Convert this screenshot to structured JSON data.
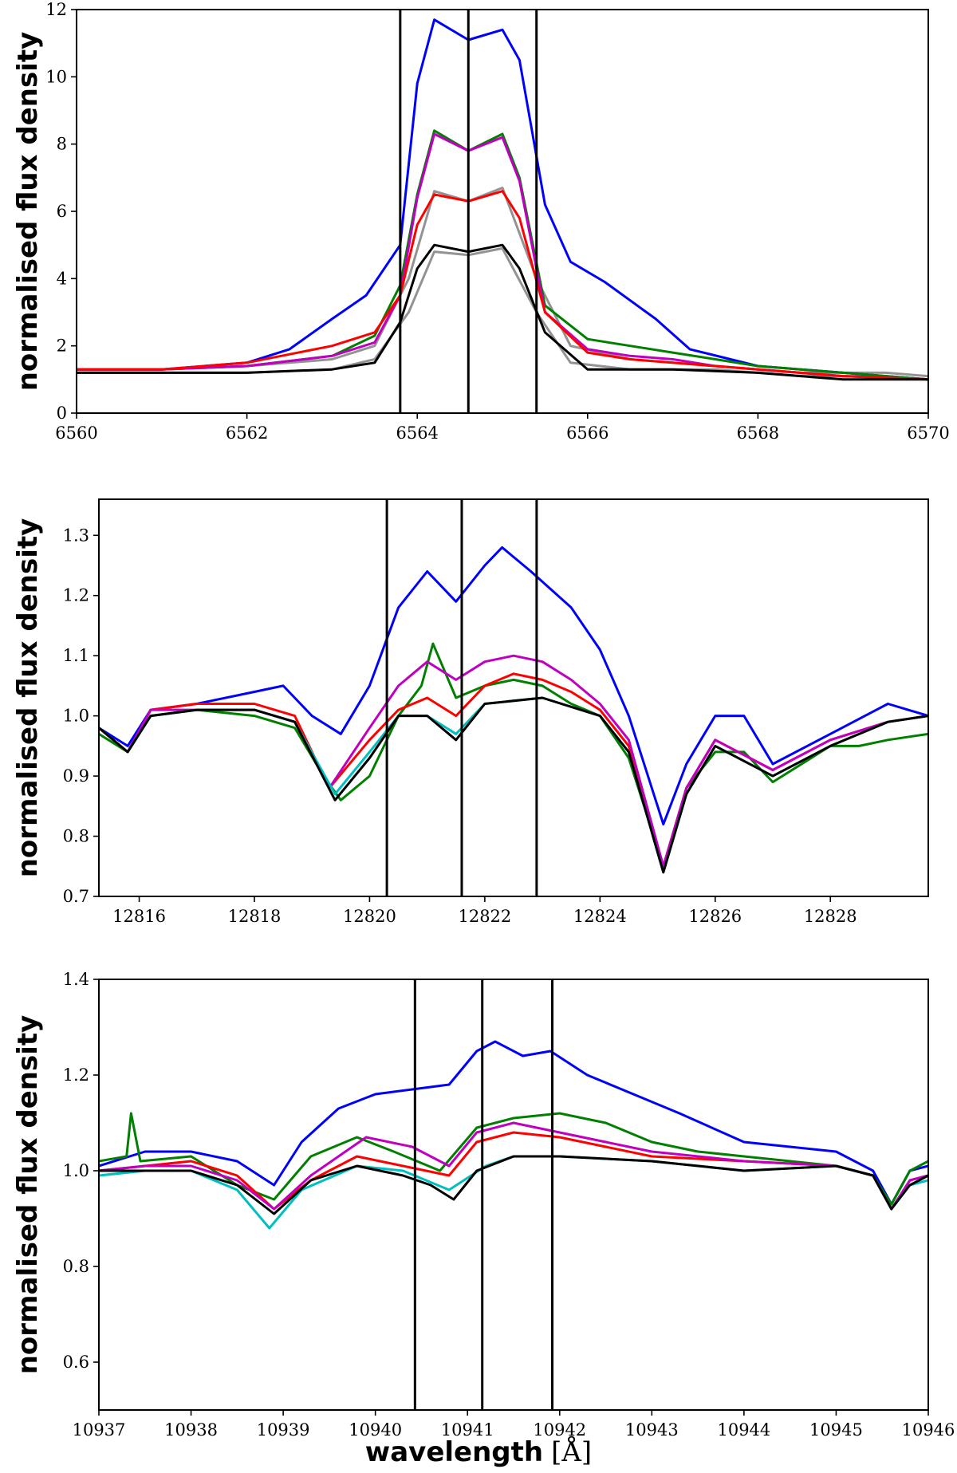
{
  "figure": {
    "xlabel_main": "wavelength",
    "xlabel_unit": "[Å]"
  },
  "colors": {
    "blue": "#0000ff",
    "green": "#007f00",
    "red": "#ff0000",
    "magenta": "#bf00bf",
    "cyan": "#00bfbf",
    "gray": "#808080",
    "black": "#000000"
  },
  "chart_data": [
    {
      "type": "line",
      "title": "",
      "xlabel": "",
      "ylabel": "normalised flux density",
      "xlim": [
        6560,
        6570
      ],
      "ylim": [
        0,
        12
      ],
      "xticks": [
        6560,
        6562,
        6564,
        6566,
        6568,
        6570
      ],
      "yticks": [
        0,
        2,
        4,
        6,
        8,
        10,
        12
      ],
      "vlines": [
        6563.8,
        6564.6,
        6565.4
      ],
      "series": [
        {
          "name": "gray",
          "color": "gray",
          "width": 10,
          "x": [
            6560,
            6561,
            6562,
            6563,
            6563.5,
            6563.9,
            6564.2,
            6564.6,
            6565.0,
            6565.4,
            6565.8,
            6566.5,
            6567.5,
            6568.5,
            6569.5,
            6570
          ],
          "y": [
            1.2,
            1.2,
            1.2,
            1.3,
            1.6,
            3.0,
            4.8,
            4.7,
            4.9,
            3.0,
            1.5,
            1.3,
            1.3,
            1.1,
            1.1,
            1.0
          ]
        },
        {
          "name": "gray2",
          "color": "gray",
          "width": 10,
          "x": [
            6560,
            6561,
            6562,
            6563,
            6563.5,
            6563.9,
            6564.2,
            6564.6,
            6565.0,
            6565.4,
            6565.8,
            6566.5,
            6567.5,
            6568.5,
            6569.5,
            6570
          ],
          "y": [
            1.3,
            1.3,
            1.4,
            1.6,
            2.0,
            4.0,
            6.6,
            6.3,
            6.7,
            4.0,
            2.0,
            1.6,
            1.4,
            1.2,
            1.2,
            1.1
          ]
        },
        {
          "name": "blue",
          "color": "blue",
          "width": 3,
          "x": [
            6560,
            6561,
            6562,
            6562.5,
            6563,
            6563.4,
            6563.8,
            6564.0,
            6564.2,
            6564.6,
            6565.0,
            6565.2,
            6565.5,
            6565.8,
            6566.2,
            6566.8,
            6567.2,
            6568,
            6569,
            6570
          ],
          "y": [
            1.3,
            1.3,
            1.5,
            1.9,
            2.8,
            3.5,
            5.0,
            9.8,
            11.7,
            11.1,
            11.4,
            10.5,
            6.2,
            4.5,
            3.9,
            2.8,
            1.9,
            1.4,
            1.2,
            1.0
          ]
        },
        {
          "name": "green",
          "color": "green",
          "width": 3,
          "x": [
            6560,
            6561,
            6562,
            6563,
            6563.5,
            6563.8,
            6564.0,
            6564.2,
            6564.6,
            6565.0,
            6565.2,
            6565.5,
            6566,
            6566.5,
            6567,
            6567.5,
            6568,
            6569,
            6570
          ],
          "y": [
            1.3,
            1.3,
            1.4,
            1.7,
            2.3,
            3.8,
            6.5,
            8.4,
            7.8,
            8.3,
            7.0,
            3.2,
            2.2,
            2.0,
            1.8,
            1.6,
            1.4,
            1.2,
            1.0
          ]
        },
        {
          "name": "magenta",
          "color": "magenta",
          "width": 3,
          "x": [
            6560,
            6561,
            6562,
            6563,
            6563.5,
            6563.8,
            6564.0,
            6564.2,
            6564.6,
            6565.0,
            6565.2,
            6565.5,
            6566,
            6566.5,
            6567,
            6567.5,
            6568,
            6569,
            6570
          ],
          "y": [
            1.3,
            1.3,
            1.4,
            1.7,
            2.1,
            3.5,
            6.4,
            8.3,
            7.8,
            8.2,
            6.9,
            3.0,
            1.9,
            1.7,
            1.6,
            1.4,
            1.3,
            1.1,
            1.0
          ]
        },
        {
          "name": "red",
          "color": "red",
          "width": 3,
          "x": [
            6560,
            6561,
            6562,
            6563,
            6563.5,
            6563.8,
            6564.0,
            6564.2,
            6564.6,
            6565.0,
            6565.2,
            6565.5,
            6566,
            6566.5,
            6567,
            6567.5,
            6568,
            6569,
            6570
          ],
          "y": [
            1.3,
            1.3,
            1.5,
            2.0,
            2.4,
            3.5,
            5.6,
            6.5,
            6.3,
            6.6,
            5.8,
            3.0,
            1.8,
            1.6,
            1.5,
            1.4,
            1.3,
            1.1,
            1.0
          ]
        },
        {
          "name": "black",
          "color": "black",
          "width": 3.5,
          "x": [
            6560,
            6561,
            6562,
            6563,
            6563.5,
            6563.8,
            6564.0,
            6564.2,
            6564.6,
            6565.0,
            6565.2,
            6565.5,
            6566,
            6567,
            6568,
            6569,
            6570
          ],
          "y": [
            1.2,
            1.2,
            1.2,
            1.3,
            1.5,
            2.7,
            4.3,
            5.0,
            4.8,
            5.0,
            4.3,
            2.4,
            1.3,
            1.3,
            1.2,
            1.0,
            1.0
          ]
        }
      ]
    },
    {
      "type": "line",
      "title": "",
      "xlabel": "",
      "ylabel": "normalised flux density",
      "xlim": [
        12815.3,
        12829.7
      ],
      "ylim": [
        0.7,
        1.36
      ],
      "xticks": [
        12816,
        12818,
        12820,
        12822,
        12824,
        12826,
        12828
      ],
      "yticks": [
        0.7,
        0.8,
        0.9,
        1.0,
        1.1,
        1.2,
        1.3
      ],
      "vlines": [
        12820.3,
        12821.6,
        12822.9
      ],
      "series": [
        {
          "name": "blue",
          "color": "blue",
          "width": 3,
          "x": [
            12815.3,
            12815.8,
            12816.2,
            12817,
            12818,
            12818.5,
            12819,
            12819.5,
            12820,
            12820.5,
            12821,
            12821.5,
            12822,
            12822.3,
            12822.8,
            12823.5,
            12824,
            12824.5,
            12825.1,
            12825.5,
            12826,
            12826.5,
            12827,
            12828,
            12829,
            12829.7
          ],
          "y": [
            0.98,
            0.95,
            1.01,
            1.02,
            1.04,
            1.05,
            1.0,
            0.97,
            1.05,
            1.18,
            1.24,
            1.19,
            1.25,
            1.28,
            1.24,
            1.18,
            1.11,
            1.0,
            0.82,
            0.92,
            1.0,
            1.0,
            0.92,
            0.97,
            1.02,
            1.0
          ]
        },
        {
          "name": "green",
          "color": "green",
          "width": 3,
          "x": [
            12815.3,
            12815.8,
            12816.2,
            12817,
            12818,
            12818.7,
            12819.2,
            12819.5,
            12820,
            12820.5,
            12820.9,
            12821.1,
            12821.5,
            12822,
            12822.5,
            12823,
            12823.5,
            12824,
            12824.5,
            12825.1,
            12825.5,
            12826,
            12826.5,
            12827,
            12828,
            12828.5,
            12829,
            12829.7
          ],
          "y": [
            0.97,
            0.94,
            1.0,
            1.01,
            1.0,
            0.98,
            0.9,
            0.86,
            0.9,
            1.0,
            1.05,
            1.12,
            1.03,
            1.05,
            1.06,
            1.05,
            1.02,
            1.0,
            0.93,
            0.75,
            0.88,
            0.94,
            0.94,
            0.89,
            0.95,
            0.95,
            0.96,
            0.97
          ]
        },
        {
          "name": "red",
          "color": "red",
          "width": 3,
          "x": [
            12815.3,
            12815.8,
            12816.2,
            12817,
            12818,
            12818.7,
            12819.3,
            12820,
            12820.5,
            12821,
            12821.5,
            12822,
            12822.5,
            12823,
            12823.5,
            12824,
            12824.5,
            12825.1,
            12825.5,
            12826,
            12827,
            12828,
            12829,
            12829.7
          ],
          "y": [
            0.98,
            0.94,
            1.01,
            1.02,
            1.02,
            1.0,
            0.88,
            0.96,
            1.01,
            1.03,
            1.0,
            1.05,
            1.07,
            1.06,
            1.04,
            1.01,
            0.95,
            0.75,
            0.88,
            0.96,
            0.91,
            0.96,
            0.99,
            1.0
          ]
        },
        {
          "name": "magenta",
          "color": "magenta",
          "width": 3,
          "x": [
            12815.3,
            12815.8,
            12816.2,
            12817,
            12818,
            12818.7,
            12819.3,
            12820,
            12820.5,
            12821,
            12821.5,
            12822,
            12822.5,
            12823,
            12823.5,
            12824,
            12824.5,
            12825.1,
            12825.5,
            12826,
            12827,
            12828,
            12829,
            12829.7
          ],
          "y": [
            0.98,
            0.94,
            1.01,
            1.01,
            1.01,
            0.99,
            0.88,
            0.98,
            1.05,
            1.09,
            1.06,
            1.09,
            1.1,
            1.09,
            1.06,
            1.02,
            0.96,
            0.75,
            0.88,
            0.96,
            0.91,
            0.96,
            0.99,
            1.0
          ]
        },
        {
          "name": "cyan",
          "color": "cyan",
          "width": 3,
          "x": [
            12815.3,
            12815.8,
            12816.2,
            12817,
            12818,
            12818.7,
            12819.4,
            12820,
            12820.5,
            12821,
            12821.5,
            12822,
            12823,
            12824,
            12824.5,
            12825.1,
            12825.5,
            12826,
            12827,
            12828,
            12829,
            12829.7
          ],
          "y": [
            0.98,
            0.94,
            1.0,
            1.01,
            1.01,
            0.99,
            0.87,
            0.94,
            1.0,
            1.0,
            0.97,
            1.02,
            1.03,
            1.0,
            0.94,
            0.74,
            0.87,
            0.95,
            0.9,
            0.95,
            0.99,
            1.0
          ]
        },
        {
          "name": "black",
          "color": "black",
          "width": 3.5,
          "x": [
            12815.3,
            12815.8,
            12816.2,
            12817,
            12818,
            12818.7,
            12819.4,
            12820,
            12820.5,
            12821,
            12821.5,
            12822,
            12823,
            12824,
            12824.5,
            12825.1,
            12825.5,
            12826,
            12827,
            12828,
            12829,
            12829.7
          ],
          "y": [
            0.98,
            0.94,
            1.0,
            1.01,
            1.01,
            0.99,
            0.86,
            0.93,
            1.0,
            1.0,
            0.96,
            1.02,
            1.03,
            1.0,
            0.94,
            0.74,
            0.87,
            0.95,
            0.9,
            0.95,
            0.99,
            1.0
          ]
        }
      ]
    },
    {
      "type": "line",
      "title": "",
      "xlabel": "wavelength [Å]",
      "ylabel": "normalised flux density",
      "xlim": [
        10937,
        10946
      ],
      "ylim": [
        0.5,
        1.4
      ],
      "xticks": [
        10937,
        10938,
        10939,
        10940,
        10941,
        10942,
        10943,
        10944,
        10945,
        10946
      ],
      "yticks": [
        0.6,
        0.8,
        1.0,
        1.2,
        1.4
      ],
      "vlines": [
        10940.43,
        10941.16,
        10941.92
      ],
      "series": [
        {
          "name": "blue",
          "color": "blue",
          "width": 3,
          "x": [
            10937,
            10937.5,
            10938,
            10938.5,
            10938.9,
            10939.2,
            10939.6,
            10940,
            10940.4,
            10940.8,
            10941.1,
            10941.3,
            10941.6,
            10941.9,
            10942.3,
            10942.8,
            10943.3,
            10944,
            10944.5,
            10945,
            10945.4,
            10945.6,
            10945.8,
            10946
          ],
          "y": [
            1.01,
            1.04,
            1.04,
            1.02,
            0.97,
            1.06,
            1.13,
            1.16,
            1.17,
            1.18,
            1.25,
            1.27,
            1.24,
            1.25,
            1.2,
            1.16,
            1.12,
            1.06,
            1.05,
            1.04,
            1.0,
            0.93,
            1.0,
            1.01
          ]
        },
        {
          "name": "green",
          "color": "green",
          "width": 3,
          "x": [
            10937,
            10937.3,
            10937.35,
            10937.45,
            10938,
            10938.5,
            10938.9,
            10939.3,
            10939.8,
            10940.2,
            10940.7,
            10941.1,
            10941.5,
            10942,
            10942.5,
            10943,
            10943.5,
            10944,
            10944.5,
            10945,
            10945.4,
            10945.6,
            10945.8,
            10946
          ],
          "y": [
            1.02,
            1.03,
            1.12,
            1.02,
            1.03,
            0.97,
            0.94,
            1.03,
            1.07,
            1.04,
            1.0,
            1.09,
            1.11,
            1.12,
            1.1,
            1.06,
            1.04,
            1.03,
            1.02,
            1.01,
            0.99,
            0.93,
            1.0,
            1.02
          ]
        },
        {
          "name": "red",
          "color": "red",
          "width": 3,
          "x": [
            10937,
            10937.5,
            10938,
            10938.5,
            10938.9,
            10939.3,
            10939.8,
            10940.3,
            10940.8,
            10941.1,
            10941.5,
            10942,
            10942.5,
            10943,
            10944,
            10945,
            10945.4,
            10945.6,
            10945.8,
            10946
          ],
          "y": [
            1.0,
            1.01,
            1.02,
            0.99,
            0.92,
            0.98,
            1.03,
            1.01,
            0.99,
            1.06,
            1.08,
            1.07,
            1.05,
            1.03,
            1.02,
            1.01,
            0.99,
            0.92,
            0.98,
            0.99
          ]
        },
        {
          "name": "magenta",
          "color": "magenta",
          "width": 3,
          "x": [
            10937,
            10937.5,
            10938,
            10938.5,
            10938.9,
            10939.3,
            10939.9,
            10940.4,
            10940.8,
            10941.1,
            10941.5,
            10942,
            10942.5,
            10943,
            10944,
            10945,
            10945.4,
            10945.6,
            10945.8,
            10946
          ],
          "y": [
            1.0,
            1.01,
            1.01,
            0.98,
            0.92,
            0.99,
            1.07,
            1.05,
            1.01,
            1.08,
            1.1,
            1.08,
            1.06,
            1.04,
            1.02,
            1.01,
            0.99,
            0.92,
            0.98,
            0.99
          ]
        },
        {
          "name": "cyan",
          "color": "cyan",
          "width": 3,
          "x": [
            10937,
            10937.5,
            10938,
            10938.5,
            10938.85,
            10939.2,
            10939.8,
            10940.3,
            10940.8,
            10941.2,
            10941.5,
            10942,
            10943,
            10944,
            10945,
            10945.4,
            10945.6,
            10945.8,
            10946
          ],
          "y": [
            0.99,
            1.0,
            1.0,
            0.96,
            0.88,
            0.96,
            1.01,
            1.0,
            0.96,
            1.01,
            1.03,
            1.03,
            1.02,
            1.0,
            1.01,
            0.99,
            0.92,
            0.97,
            0.98
          ]
        },
        {
          "name": "black",
          "color": "black",
          "width": 3.5,
          "x": [
            10937,
            10937.5,
            10938,
            10938.5,
            10938.9,
            10939.3,
            10939.8,
            10940.3,
            10940.6,
            10940.85,
            10941.1,
            10941.5,
            10942,
            10943,
            10944,
            10945,
            10945.4,
            10945.6,
            10945.8,
            10946
          ],
          "y": [
            1.0,
            1.0,
            1.0,
            0.97,
            0.91,
            0.98,
            1.01,
            0.99,
            0.97,
            0.94,
            1.0,
            1.03,
            1.03,
            1.02,
            1.0,
            1.01,
            0.99,
            0.92,
            0.97,
            0.99
          ]
        }
      ]
    }
  ]
}
